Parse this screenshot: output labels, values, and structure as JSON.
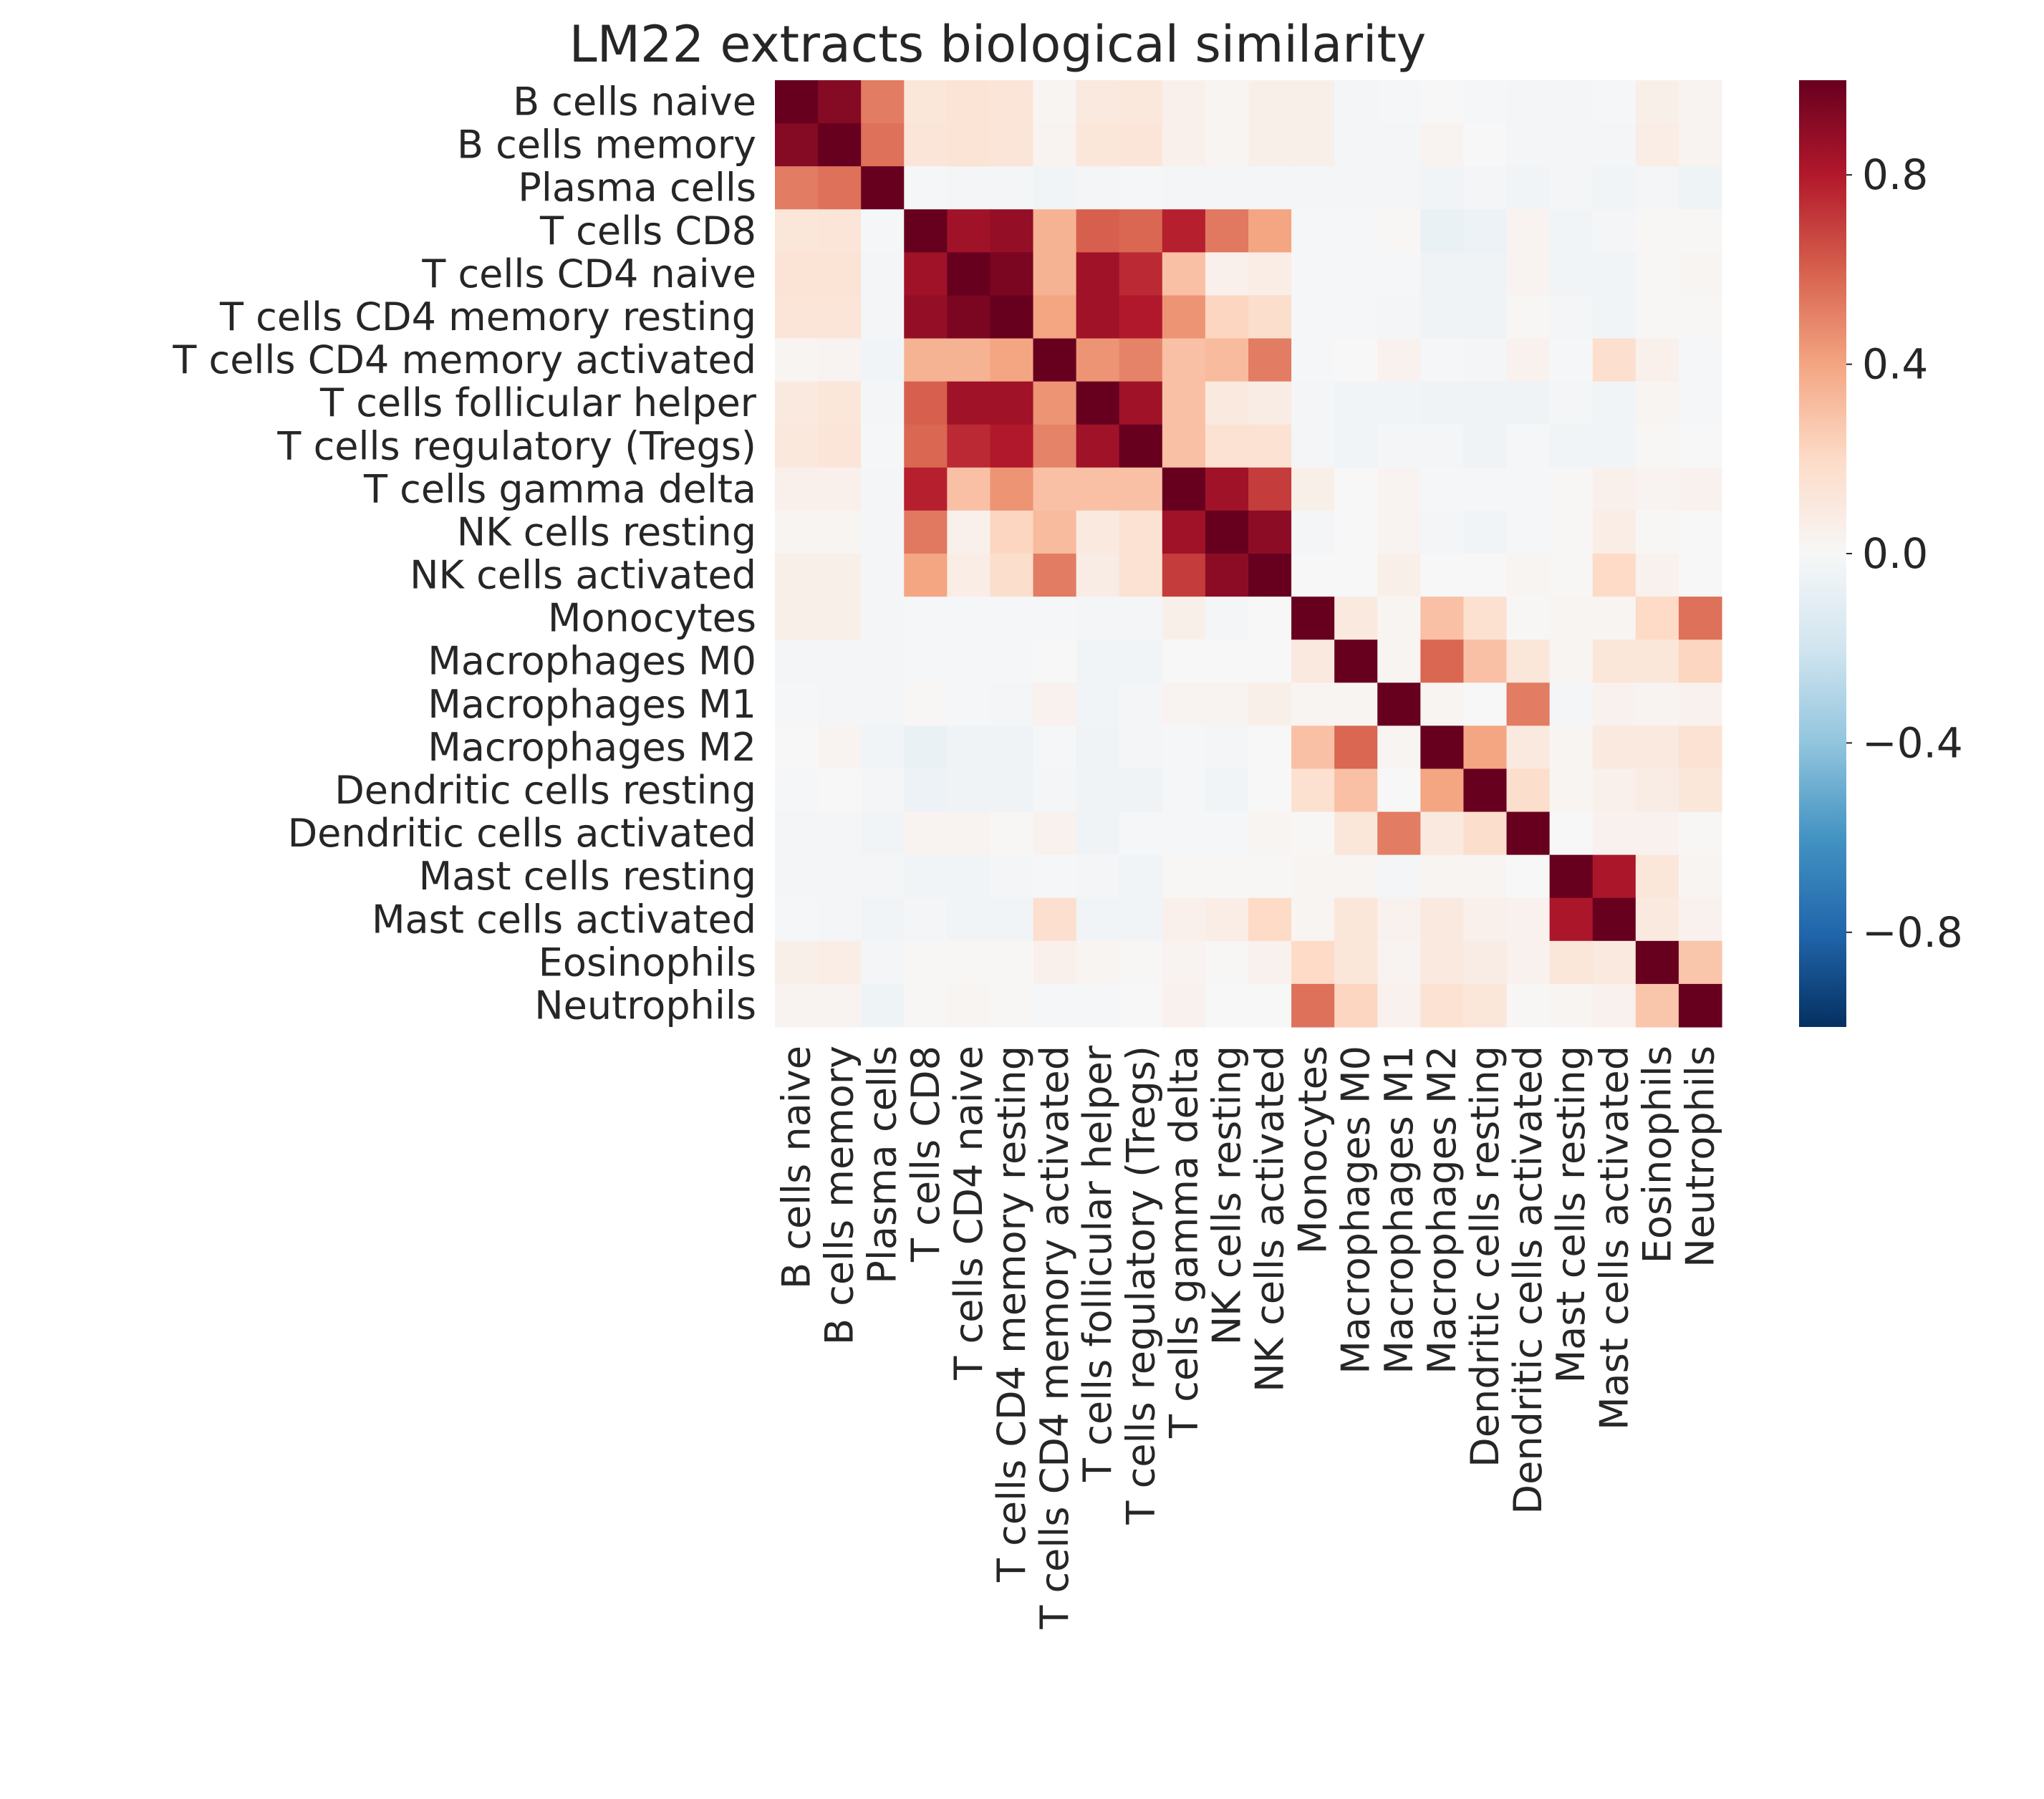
{
  "chart_data": {
    "type": "heatmap",
    "title": "LM22 extracts biological similarity",
    "xlabel": "",
    "ylabel": "",
    "row_labels": [
      "B cells naive",
      "B cells memory",
      "Plasma cells",
      "T cells CD8",
      "T cells CD4 naive",
      "T cells CD4 memory resting",
      "T cells CD4 memory activated",
      "T cells follicular helper",
      "T cells regulatory (Tregs)",
      "T cells gamma delta",
      "NK cells resting",
      "NK cells activated",
      "Monocytes",
      "Macrophages M0",
      "Macrophages M1",
      "Macrophages M2",
      "Dendritic cells resting",
      "Dendritic cells activated",
      "Mast cells resting",
      "Mast cells activated",
      "Eosinophils",
      "Neutrophils"
    ],
    "col_labels": [
      "B cells naive",
      "B cells memory",
      "Plasma cells",
      "T cells CD8",
      "T cells CD4 naive",
      "T cells CD4 memory resting",
      "T cells CD4 memory activated",
      "T cells follicular helper",
      "T cells regulatory (Tregs)",
      "T cells gamma delta",
      "NK cells resting",
      "NK cells activated",
      "Monocytes",
      "Macrophages M0",
      "Macrophages M1",
      "Macrophages M2",
      "Dendritic cells resting",
      "Dendritic cells activated",
      "Mast cells resting",
      "Mast cells activated",
      "Eosinophils",
      "Neutrophils"
    ],
    "values": [
      [
        1.0,
        0.92,
        0.52,
        0.12,
        0.14,
        0.13,
        0.02,
        0.1,
        0.11,
        0.05,
        0.02,
        0.06,
        0.06,
        -0.02,
        -0.01,
        0.0,
        -0.01,
        -0.02,
        -0.02,
        -0.01,
        0.06,
        0.03
      ],
      [
        0.92,
        1.0,
        0.55,
        0.13,
        0.14,
        0.13,
        0.03,
        0.12,
        0.13,
        0.05,
        0.02,
        0.06,
        0.06,
        -0.02,
        -0.02,
        0.03,
        0.0,
        -0.02,
        -0.02,
        -0.02,
        0.07,
        0.03
      ],
      [
        0.52,
        0.55,
        1.0,
        -0.01,
        -0.02,
        -0.02,
        -0.03,
        -0.02,
        -0.01,
        -0.02,
        -0.02,
        -0.02,
        -0.02,
        -0.02,
        -0.02,
        -0.03,
        -0.02,
        -0.03,
        -0.02,
        -0.03,
        -0.02,
        -0.05
      ],
      [
        0.12,
        0.13,
        -0.01,
        1.0,
        0.85,
        0.88,
        0.35,
        0.6,
        0.58,
        0.78,
        0.53,
        0.4,
        -0.01,
        -0.01,
        0.01,
        -0.07,
        -0.06,
        0.03,
        -0.03,
        -0.02,
        0.01,
        0.01
      ],
      [
        0.14,
        0.14,
        -0.02,
        0.85,
        1.0,
        0.95,
        0.35,
        0.85,
        0.75,
        0.3,
        0.05,
        0.07,
        -0.01,
        -0.01,
        -0.01,
        -0.04,
        -0.04,
        0.03,
        -0.03,
        -0.03,
        0.01,
        0.02
      ],
      [
        0.13,
        0.13,
        -0.02,
        0.88,
        0.95,
        1.0,
        0.4,
        0.85,
        0.8,
        0.45,
        0.22,
        0.18,
        -0.01,
        -0.01,
        -0.02,
        -0.04,
        -0.04,
        0.01,
        -0.02,
        -0.03,
        0.01,
        0.01
      ],
      [
        0.02,
        0.03,
        -0.03,
        0.35,
        0.35,
        0.4,
        1.0,
        0.45,
        0.5,
        0.3,
        0.32,
        0.52,
        -0.01,
        0.0,
        0.04,
        -0.01,
        -0.02,
        0.04,
        -0.01,
        0.17,
        0.05,
        -0.01
      ],
      [
        0.1,
        0.12,
        -0.02,
        0.6,
        0.85,
        0.85,
        0.45,
        1.0,
        0.85,
        0.3,
        0.1,
        0.08,
        -0.02,
        -0.03,
        -0.03,
        -0.04,
        -0.04,
        -0.04,
        -0.02,
        -0.03,
        0.02,
        -0.01
      ],
      [
        0.11,
        0.13,
        -0.01,
        0.58,
        0.75,
        0.8,
        0.5,
        0.85,
        1.0,
        0.3,
        0.15,
        0.15,
        -0.02,
        -0.03,
        -0.02,
        -0.02,
        -0.04,
        -0.01,
        -0.03,
        -0.03,
        0.01,
        0.0
      ],
      [
        0.05,
        0.05,
        -0.02,
        0.78,
        0.3,
        0.45,
        0.3,
        0.3,
        0.3,
        1.0,
        0.85,
        0.7,
        0.06,
        0.0,
        0.03,
        -0.01,
        -0.01,
        -0.01,
        0.01,
        0.05,
        0.03,
        0.04
      ],
      [
        0.02,
        0.02,
        -0.02,
        0.53,
        0.05,
        0.22,
        0.32,
        0.1,
        0.15,
        0.85,
        1.0,
        0.9,
        -0.02,
        0.0,
        0.03,
        -0.02,
        -0.03,
        -0.01,
        0.01,
        0.07,
        0.01,
        0.0
      ],
      [
        0.06,
        0.06,
        -0.02,
        0.4,
        0.07,
        0.18,
        0.52,
        0.08,
        0.15,
        0.7,
        0.9,
        1.0,
        0.0,
        0.0,
        0.06,
        0.0,
        0.0,
        0.02,
        0.01,
        0.2,
        0.04,
        0.0
      ],
      [
        0.06,
        0.06,
        -0.02,
        -0.01,
        -0.01,
        -0.01,
        -0.01,
        -0.02,
        -0.02,
        0.06,
        -0.02,
        0.0,
        1.0,
        0.1,
        0.02,
        0.3,
        0.16,
        0.01,
        0.02,
        0.02,
        0.2,
        0.55
      ],
      [
        -0.02,
        -0.02,
        -0.02,
        -0.01,
        -0.01,
        -0.01,
        0.0,
        -0.03,
        -0.03,
        0.0,
        0.0,
        0.0,
        0.1,
        1.0,
        0.02,
        0.58,
        0.3,
        0.12,
        0.02,
        0.12,
        0.12,
        0.22
      ],
      [
        -0.01,
        -0.02,
        -0.02,
        0.01,
        -0.01,
        -0.02,
        0.04,
        -0.03,
        -0.02,
        0.03,
        0.03,
        0.06,
        0.02,
        0.02,
        1.0,
        0.02,
        0.0,
        0.52,
        -0.02,
        0.04,
        0.03,
        0.04
      ],
      [
        0.0,
        0.03,
        -0.03,
        -0.07,
        -0.04,
        -0.04,
        -0.01,
        -0.04,
        -0.02,
        -0.01,
        -0.02,
        0.0,
        0.3,
        0.58,
        0.02,
        1.0,
        0.4,
        0.1,
        0.02,
        0.1,
        0.1,
        0.15
      ],
      [
        -0.01,
        0.0,
        -0.02,
        -0.06,
        -0.04,
        -0.04,
        -0.02,
        -0.04,
        -0.04,
        -0.01,
        -0.03,
        0.0,
        0.16,
        0.3,
        0.0,
        0.4,
        1.0,
        0.18,
        0.02,
        0.05,
        0.08,
        0.12
      ],
      [
        -0.02,
        -0.02,
        -0.03,
        0.03,
        0.03,
        0.01,
        0.04,
        -0.04,
        -0.01,
        -0.01,
        -0.01,
        0.02,
        0.01,
        0.12,
        0.52,
        0.1,
        0.18,
        1.0,
        0.0,
        0.04,
        0.04,
        0.01
      ],
      [
        -0.02,
        -0.02,
        -0.02,
        -0.03,
        -0.03,
        -0.02,
        -0.01,
        -0.02,
        -0.03,
        0.01,
        0.01,
        0.01,
        0.02,
        0.02,
        -0.02,
        0.02,
        0.02,
        0.0,
        1.0,
        0.82,
        0.12,
        0.02
      ],
      [
        -0.01,
        -0.02,
        -0.03,
        -0.02,
        -0.03,
        -0.03,
        0.17,
        -0.03,
        -0.03,
        0.05,
        0.07,
        0.2,
        0.02,
        0.12,
        0.04,
        0.1,
        0.05,
        0.04,
        0.82,
        1.0,
        0.1,
        0.04
      ],
      [
        0.06,
        0.07,
        -0.02,
        0.01,
        0.01,
        0.01,
        0.05,
        0.02,
        0.01,
        0.03,
        0.01,
        0.04,
        0.2,
        0.12,
        0.03,
        0.1,
        0.08,
        0.04,
        0.12,
        0.1,
        1.0,
        0.28
      ],
      [
        0.03,
        0.03,
        -0.05,
        0.01,
        0.02,
        0.01,
        -0.01,
        -0.01,
        0.0,
        0.04,
        0.0,
        0.0,
        0.55,
        0.22,
        0.04,
        0.15,
        0.12,
        0.01,
        0.02,
        0.04,
        0.28,
        1.0
      ]
    ],
    "vmin": -1.0,
    "vmax": 1.0,
    "colormap": "RdBu_r",
    "colorbar_ticks": [
      0.8,
      0.4,
      0.0,
      -0.4,
      -0.8
    ],
    "colorbar_tick_labels": [
      "0.8",
      "0.4",
      "0.0",
      "−0.4",
      "−0.8"
    ],
    "grid": false,
    "legend": "right"
  }
}
